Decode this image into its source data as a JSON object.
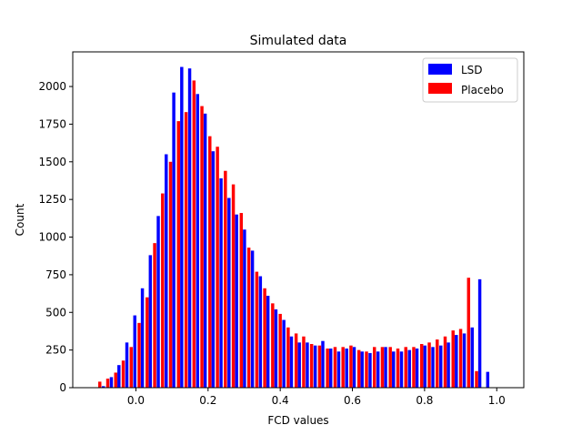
{
  "chart_data": {
    "type": "bar",
    "title": "Simulated data",
    "xlabel": "FCD values",
    "ylabel": "Count",
    "xlim": [
      -0.175,
      1.075
    ],
    "ylim": [
      0,
      2230
    ],
    "xticks": [
      0.0,
      0.2,
      0.4,
      0.6,
      0.8,
      1.0
    ],
    "xtick_labels": [
      "0.0",
      "0.2",
      "0.4",
      "0.6",
      "0.8",
      "1.0"
    ],
    "yticks": [
      0,
      250,
      500,
      750,
      1000,
      1250,
      1500,
      1750,
      2000
    ],
    "ytick_labels": [
      "0",
      "250",
      "500",
      "750",
      "1000",
      "1250",
      "1500",
      "1750",
      "2000"
    ],
    "grid": false,
    "legend_position": "top-right",
    "bin_width": 0.0218,
    "series": [
      {
        "name": "LSD",
        "color": "#0000ff",
        "x": [
          -0.09,
          -0.068,
          -0.047,
          -0.025,
          -0.003,
          0.018,
          0.04,
          0.062,
          0.084,
          0.105,
          0.127,
          0.149,
          0.171,
          0.192,
          0.214,
          0.236,
          0.258,
          0.279,
          0.301,
          0.323,
          0.345,
          0.366,
          0.388,
          0.41,
          0.431,
          0.453,
          0.475,
          0.497,
          0.518,
          0.54,
          0.562,
          0.584,
          0.605,
          0.627,
          0.649,
          0.671,
          0.692,
          0.714,
          0.736,
          0.758,
          0.779,
          0.801,
          0.823,
          0.845,
          0.866,
          0.888,
          0.91,
          0.932,
          0.953,
          0.975,
          0.997
        ],
        "values": [
          10,
          70,
          150,
          300,
          480,
          660,
          880,
          1140,
          1550,
          1960,
          2130,
          2120,
          1950,
          1820,
          1570,
          1390,
          1260,
          1150,
          1050,
          910,
          740,
          610,
          520,
          450,
          340,
          300,
          300,
          280,
          310,
          260,
          240,
          260,
          270,
          240,
          230,
          240,
          270,
          240,
          240,
          250,
          260,
          280,
          270,
          280,
          300,
          350,
          360,
          400,
          720,
          105,
          0
        ]
      },
      {
        "name": "Placebo",
        "color": "#ff0000",
        "x": [
          -0.1,
          -0.078,
          -0.056,
          -0.035,
          -0.013,
          0.009,
          0.031,
          0.052,
          0.074,
          0.096,
          0.118,
          0.139,
          0.161,
          0.183,
          0.205,
          0.226,
          0.248,
          0.27,
          0.292,
          0.313,
          0.335,
          0.357,
          0.379,
          0.4,
          0.422,
          0.444,
          0.465,
          0.487,
          0.509,
          0.531,
          0.552,
          0.574,
          0.596,
          0.618,
          0.639,
          0.661,
          0.683,
          0.705,
          0.726,
          0.748,
          0.77,
          0.792,
          0.813,
          0.835,
          0.857,
          0.879,
          0.9,
          0.922,
          0.944,
          0.966,
          0.987
        ],
        "values": [
          40,
          60,
          100,
          180,
          270,
          430,
          600,
          960,
          1290,
          1500,
          1770,
          1830,
          2040,
          1870,
          1670,
          1600,
          1440,
          1350,
          1160,
          930,
          770,
          660,
          560,
          490,
          400,
          360,
          340,
          290,
          280,
          260,
          270,
          270,
          280,
          250,
          240,
          270,
          270,
          270,
          260,
          270,
          270,
          290,
          300,
          320,
          340,
          380,
          390,
          730,
          110,
          0,
          0
        ]
      }
    ]
  }
}
